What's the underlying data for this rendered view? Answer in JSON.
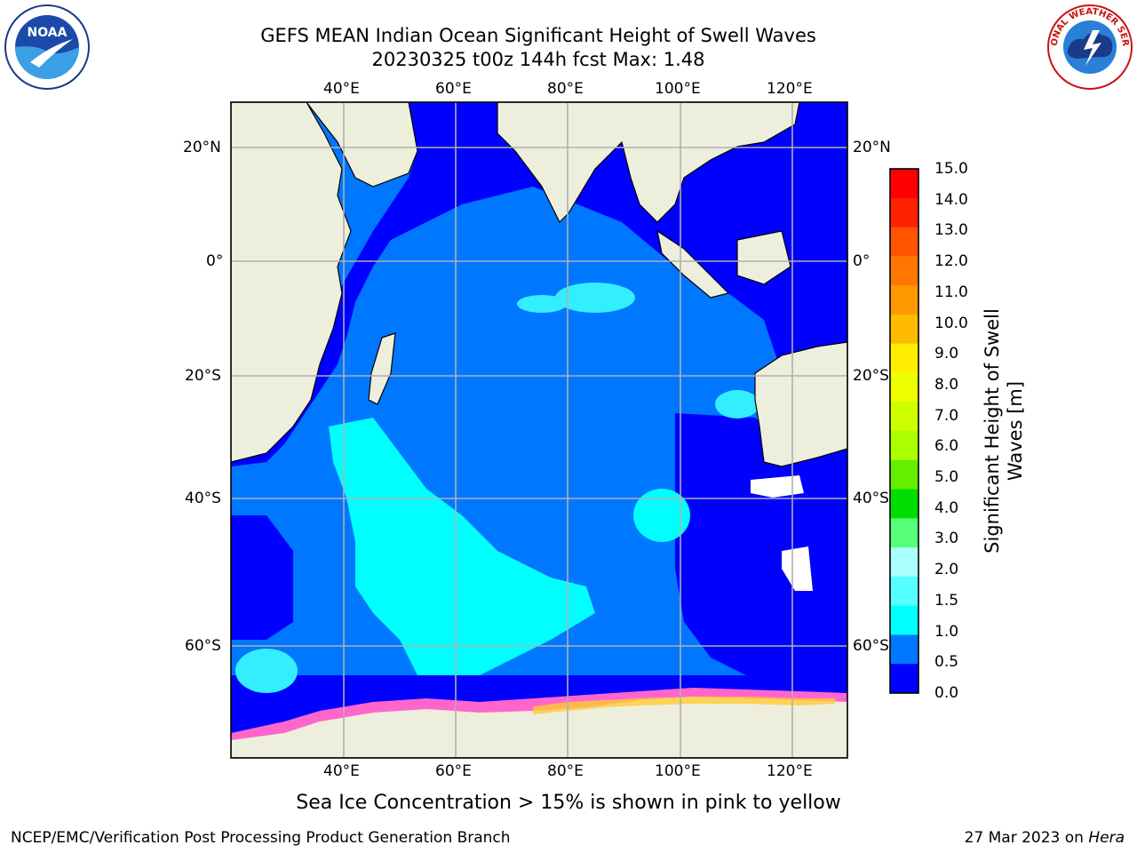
{
  "header": {
    "title_line1": "GEFS MEAN Indian Ocean Significant Height of Swell Waves",
    "title_line2": "20230325 t00z 144h fcst   Max: 1.48"
  },
  "logos": {
    "noaa": "NOAA",
    "nws": "NATIONAL WEATHER SERVICE"
  },
  "map": {
    "lon_ticks": [
      "40°E",
      "60°E",
      "80°E",
      "100°E",
      "120°E"
    ],
    "lat_ticks": [
      "20°N",
      "0°",
      "20°S",
      "40°S",
      "60°S"
    ],
    "colors": {
      "land": "#eeeedd",
      "ice_pink": "#ff66cc",
      "ice_yellow": "#ffcc33"
    }
  },
  "colorbar": {
    "title": "Significant Height of Swell Waves [m]",
    "labels": [
      "15.0",
      "14.0",
      "13.0",
      "12.0",
      "11.0",
      "10.0",
      "9.0",
      "8.0",
      "7.0",
      "6.0",
      "5.0",
      "4.0",
      "3.0",
      "2.0",
      "1.5",
      "1.0",
      "0.5",
      "0.0"
    ],
    "colors_top_to_bottom": [
      "#ff0000",
      "#ff2200",
      "#ff5500",
      "#ff7700",
      "#ff9900",
      "#ffbb00",
      "#ffee00",
      "#eeff00",
      "#ccff00",
      "#aaff00",
      "#66ee00",
      "#00dd00",
      "#55ff77",
      "#aaffff",
      "#55ffff",
      "#00ffff",
      "#0077ff",
      "#0000ff"
    ]
  },
  "footer": {
    "note": "Sea Ice Concentration > 15% is shown in pink to yellow",
    "left": "NCEP/EMC/Verification Post Processing Product Generation Branch",
    "date": "27 Mar 2023 on ",
    "machine": "Hera"
  }
}
